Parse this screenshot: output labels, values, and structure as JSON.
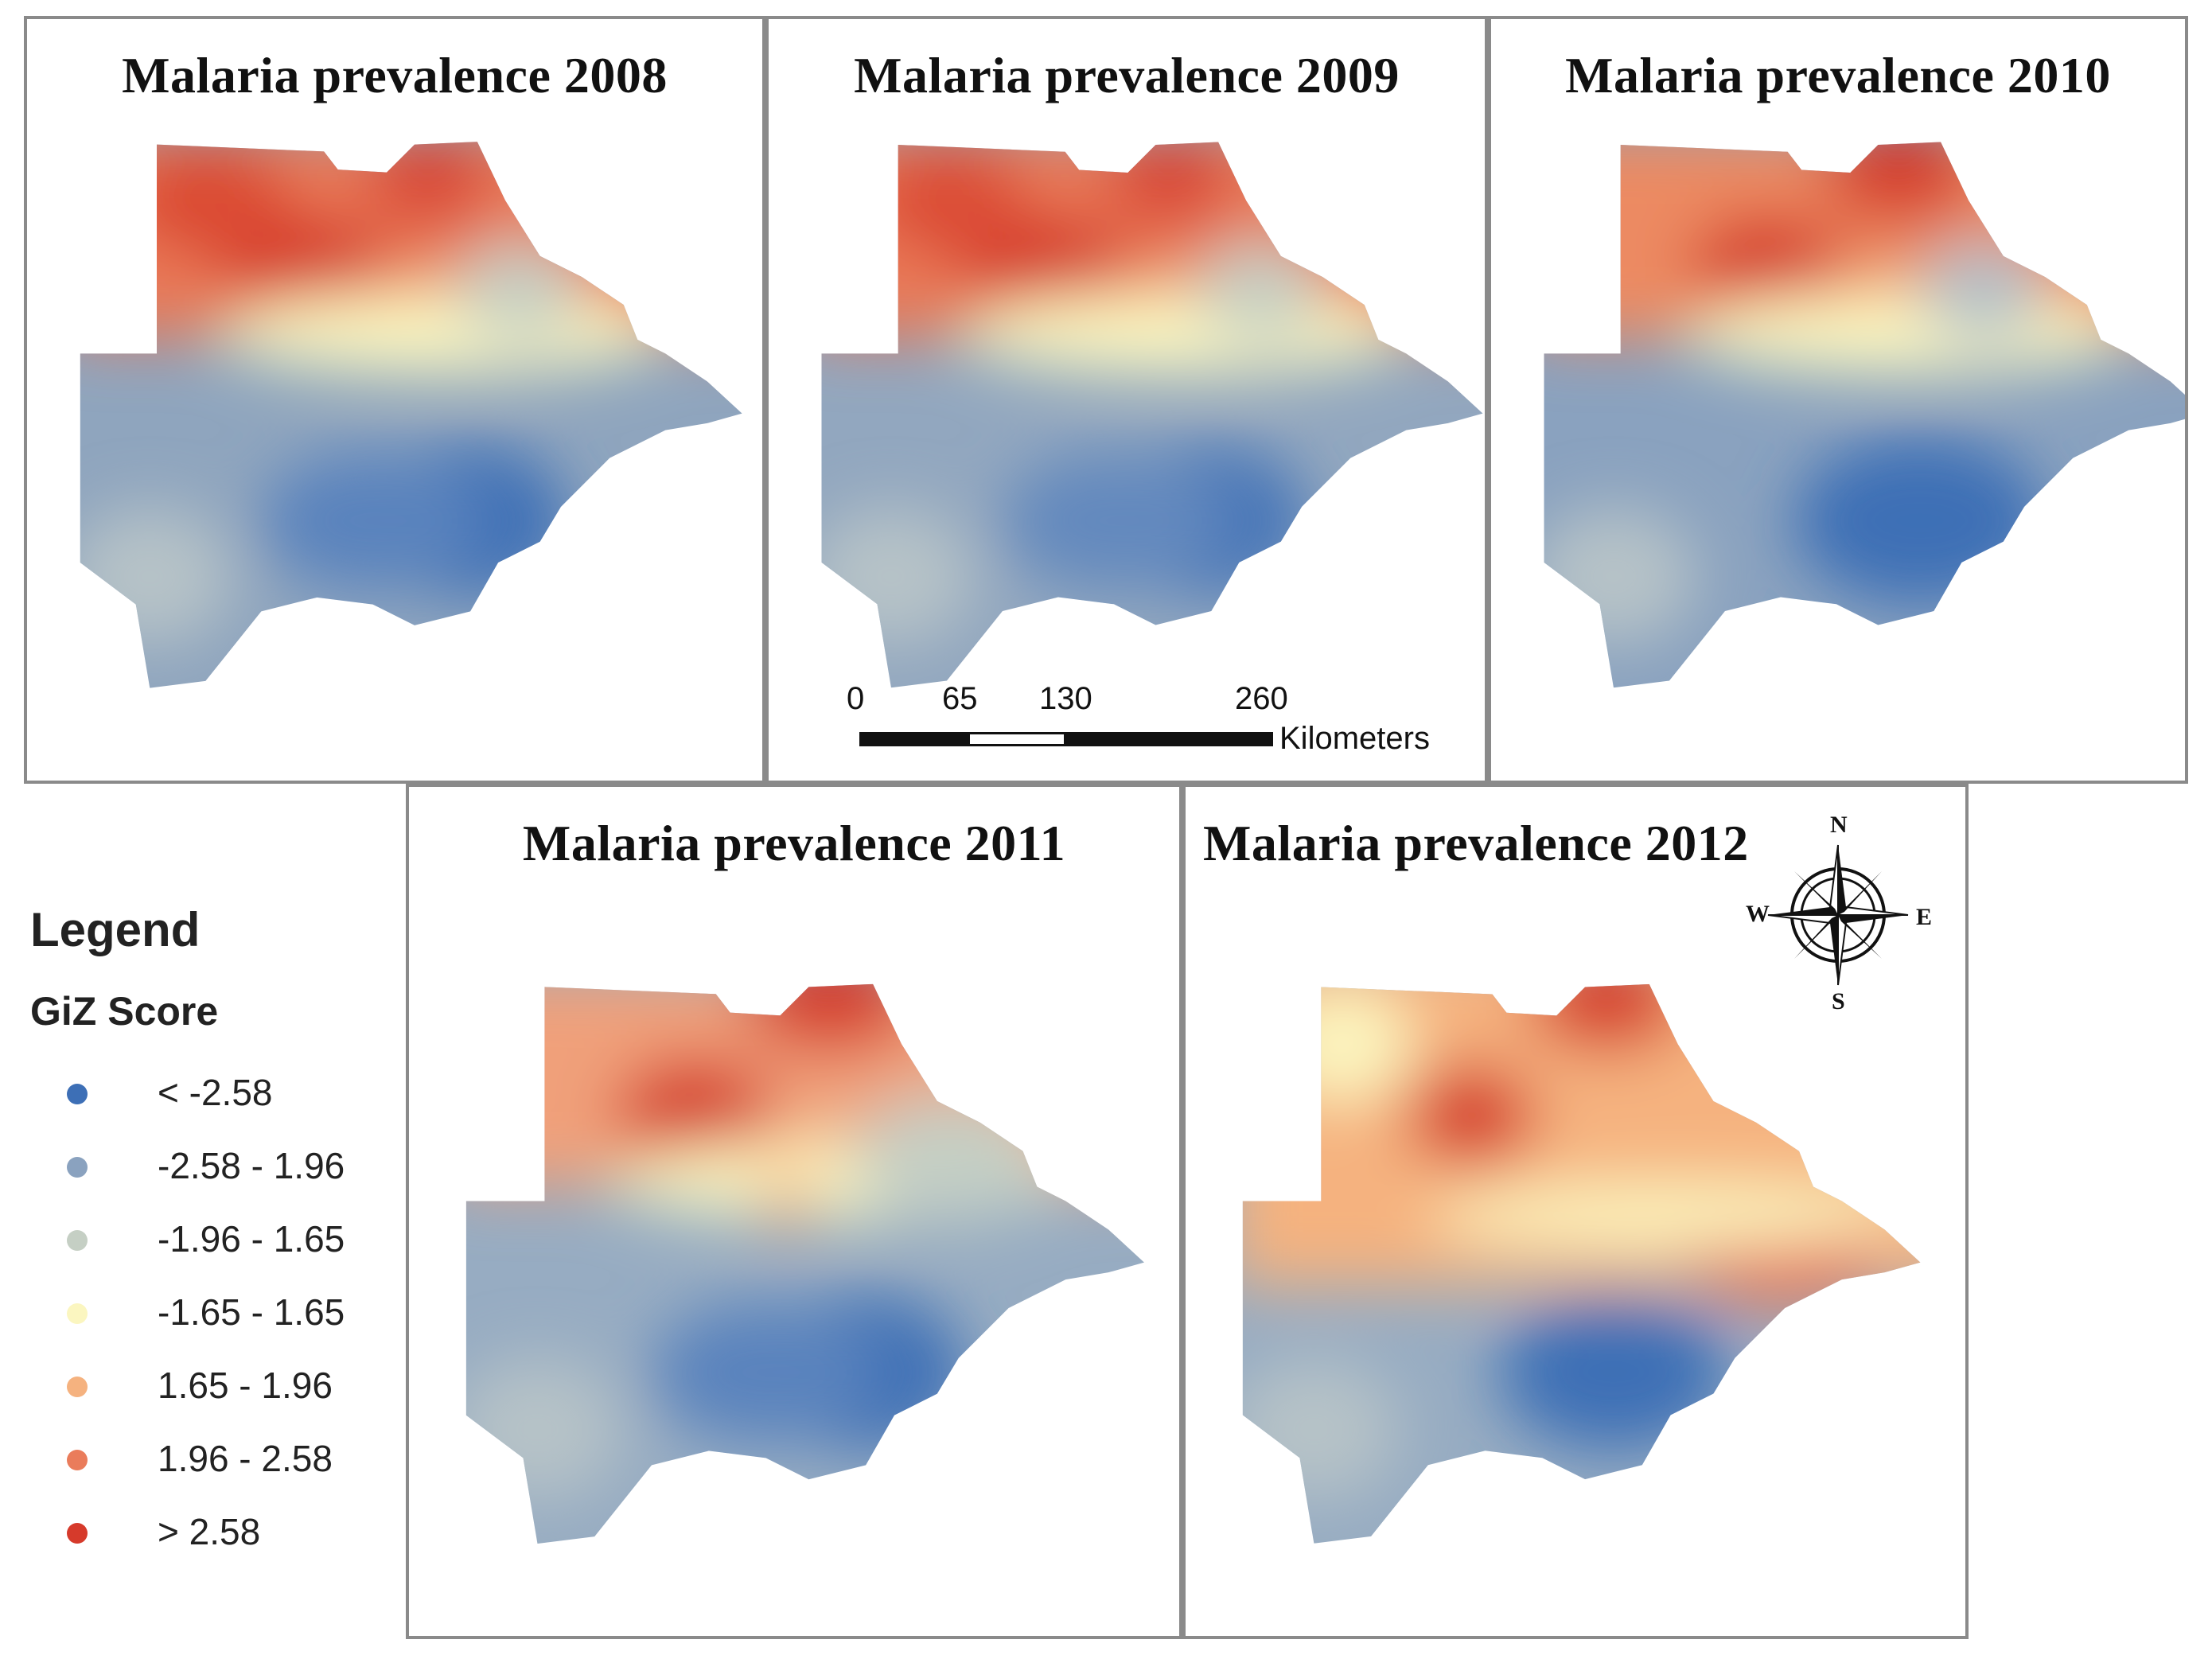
{
  "figure": {
    "panels": [
      {
        "title": "Malaria prevalence 2008"
      },
      {
        "title": "Malaria prevalence 2009"
      },
      {
        "title": "Malaria prevalence 2010"
      },
      {
        "title": "Malaria prevalence 2011"
      },
      {
        "title": "Malaria prevalence 2012"
      }
    ]
  },
  "legend": {
    "title": "Legend",
    "subtitle": "GiZ Score",
    "items": [
      {
        "label": "< -2.58",
        "color": "#3d6fb6"
      },
      {
        "label": "-2.58 - 1.96",
        "color": "#8aa2bf"
      },
      {
        "label": "-1.96 - 1.65",
        "color": "#c5cfc4"
      },
      {
        "label": "-1.65 - 1.65",
        "color": "#fbf6c0"
      },
      {
        "label": "1.65 - 1.96",
        "color": "#f5b27f"
      },
      {
        "label": "1.96 - 2.58",
        "color": "#ea7c5b"
      },
      {
        "label": "> 2.58",
        "color": "#d63a2b"
      }
    ]
  },
  "scale_bar": {
    "ticks": [
      "0",
      "65",
      "130",
      "260"
    ],
    "unit": "Kilometers"
  },
  "compass": {
    "n": "N",
    "s": "S",
    "e": "E",
    "w": "W"
  }
}
